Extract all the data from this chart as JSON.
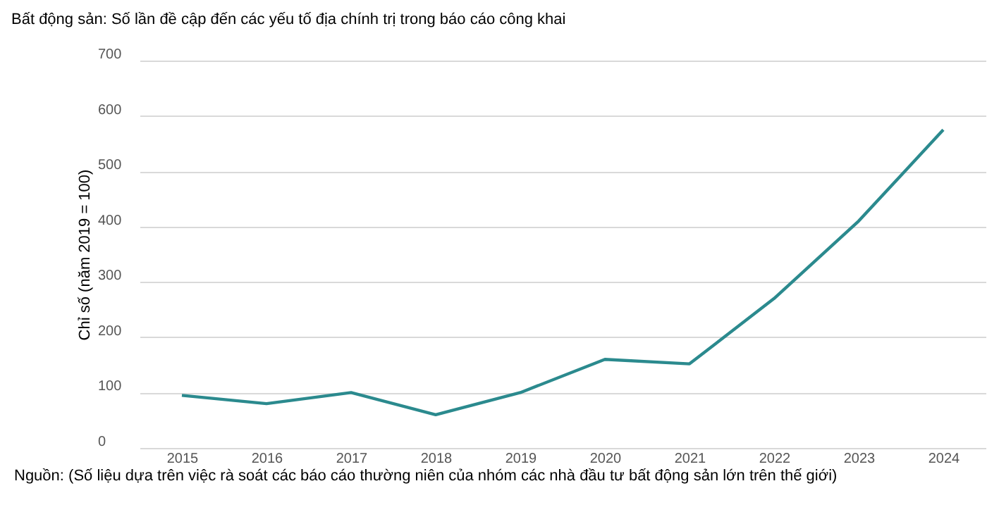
{
  "chart_data": {
    "type": "line",
    "title": "Bất động sản: Số lần đề cập đến các yếu tố địa chính trị trong báo cáo công khai",
    "ylabel": "Chỉ số (năm 2019 = 100)",
    "categories": [
      "2015",
      "2016",
      "2017",
      "2018",
      "2019",
      "2020",
      "2021",
      "2022",
      "2023",
      "2024"
    ],
    "series": [
      {
        "color": "#2b8a8e",
        "values": [
          95,
          80,
          100,
          60,
          100,
          160,
          152,
          270,
          410,
          575
        ]
      }
    ],
    "ylim": [
      0,
      700
    ],
    "yticks": [
      0,
      100,
      200,
      300,
      400,
      500,
      600,
      700
    ],
    "grid": "y",
    "marker": "none",
    "line_style": "solid",
    "annotations": [
      "Nguồn: (Số liệu dựa trên việc rà soát các báo cáo thường niên của nhóm các nhà đầu tư bất động sản lớn trên thế giới)"
    ]
  }
}
